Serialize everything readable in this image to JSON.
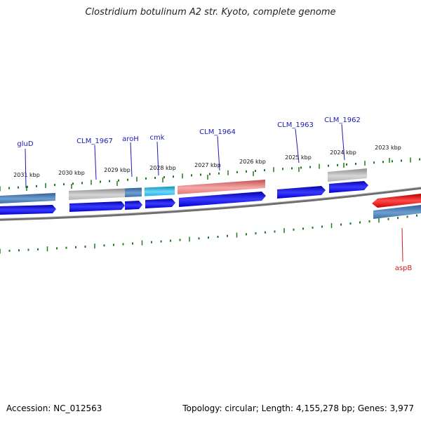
{
  "title": "Clostridium botulinum A2 str. Kyoto, complete genome",
  "accession": "Accession: NC_012563",
  "summary": "Topology: circular; Length: 4,155,278 bp; Genes: 3,977",
  "ticks": [
    "2031 kbp",
    "2030 kbp",
    "2029 kbp",
    "2028 kbp",
    "2027 kbp",
    "2026 kbp",
    "2025 kbp",
    "2024 kbp",
    "2023 kbp"
  ],
  "gene_labels": [
    "gluD",
    "CLM_1967",
    "aroH",
    "cmk",
    "CLM_1964",
    "CLM_1963",
    "CLM_1962",
    "aspB"
  ],
  "colors": {
    "backbone": "#7a7a7a",
    "tick": "#1f7a1f",
    "cds": "#0000e6",
    "gene_steelblue": "#3b6ea5",
    "gene_grey": "#b4b4b4",
    "gene_cyan": "#19b4e6",
    "gene_salmon": "#e67878",
    "gene_red": "#e60000",
    "label_blue": "#1a1ab4",
    "label_red": "#d21e1e"
  }
}
